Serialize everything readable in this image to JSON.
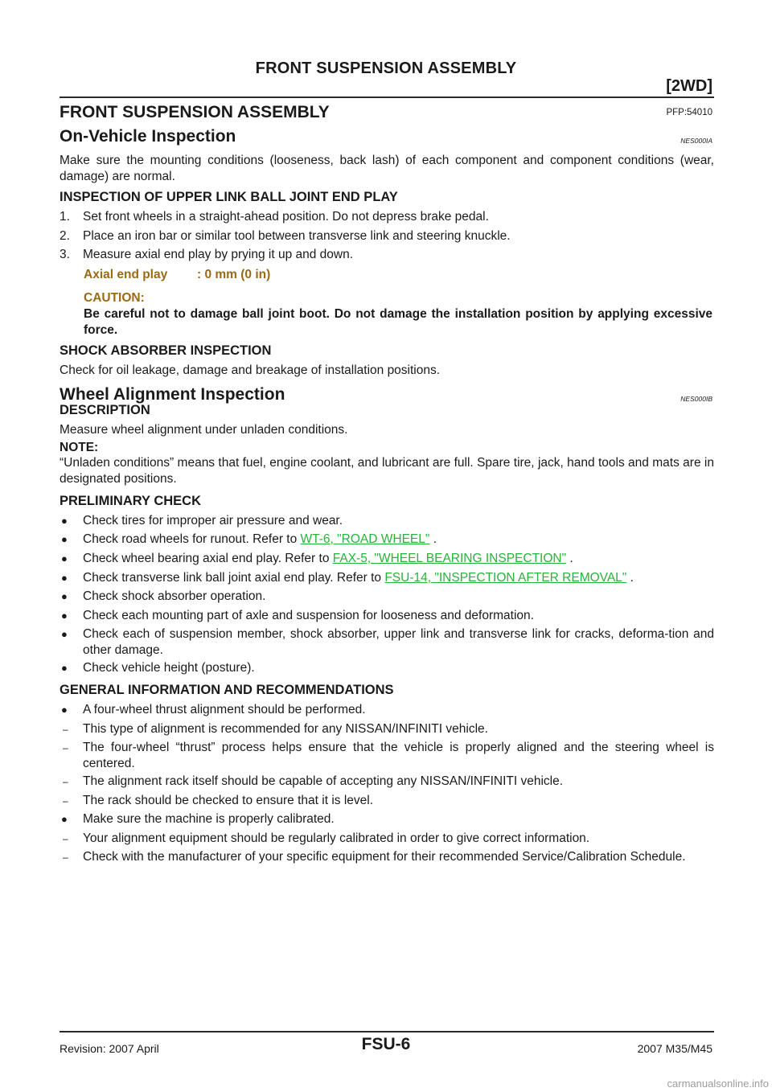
{
  "header": {
    "title": "FRONT SUSPENSION ASSEMBLY",
    "tag": "[2WD]"
  },
  "section": {
    "title": "FRONT SUSPENSION ASSEMBLY",
    "code": "PFP:54010"
  },
  "on_vehicle": {
    "title": "On-Vehicle Inspection",
    "code": "NES000IA",
    "intro": "Make sure the mounting conditions (looseness, back lash) of each component and component conditions (wear, damage) are normal.",
    "ball_joint": {
      "heading": "INSPECTION OF UPPER LINK BALL JOINT END PLAY",
      "steps": [
        {
          "num": "1.",
          "text": "Set front wheels in a straight-ahead position. Do not depress brake pedal."
        },
        {
          "num": "2.",
          "text": "Place an iron bar or similar tool between transverse link and steering knuckle."
        },
        {
          "num": "3.",
          "text": "Measure axial end play by prying it up and down."
        }
      ],
      "spec_label": "Axial end play",
      "spec_value": ": 0 mm (0 in)",
      "caution_heading": "CAUTION:",
      "caution_text": "Be careful not to damage ball joint boot. Do not damage the installation position by applying excessive force."
    },
    "shock": {
      "heading": "SHOCK ABSORBER INSPECTION",
      "text": "Check for oil leakage, damage and breakage of installation positions."
    }
  },
  "alignment": {
    "title": "Wheel Alignment Inspection",
    "code": "NES000IB",
    "description_heading": "DESCRIPTION",
    "description_text": "Measure wheel alignment under unladen conditions.",
    "note_heading": "NOTE:",
    "note_text": "“Unladen conditions” means that fuel, engine coolant, and lubricant are full. Spare tire, jack, hand tools and mats are in designated positions.",
    "preliminary": {
      "heading": "PRELIMINARY CHECK",
      "items": [
        {
          "text": "Check tires for improper air pressure and wear."
        },
        {
          "pre": "Check road wheels for runout. Refer to ",
          "link": "WT-6, \"ROAD WHEEL\"",
          "post": " ."
        },
        {
          "pre": "Check wheel bearing axial end play. Refer to ",
          "link": "FAX-5, \"WHEEL BEARING INSPECTION\"",
          "post": " ."
        },
        {
          "pre": "Check transverse link ball joint axial end play. Refer to ",
          "link": "FSU-14, \"INSPECTION AFTER REMOVAL\"",
          "post": " ."
        },
        {
          "text": "Check shock absorber operation."
        },
        {
          "text": "Check each mounting part of axle and suspension for looseness and deformation."
        },
        {
          "text": "Check each of suspension member, shock absorber, upper link and transverse link for cracks, deforma-tion and other damage."
        },
        {
          "text": "Check vehicle height (posture)."
        }
      ]
    },
    "general": {
      "heading": "GENERAL INFORMATION AND RECOMMENDATIONS",
      "items": [
        {
          "marker": "●",
          "text": "A four-wheel thrust alignment should be performed."
        },
        {
          "marker": "–",
          "text": "This type of alignment is recommended for any NISSAN/INFINITI vehicle."
        },
        {
          "marker": "–",
          "text": "The four-wheel “thrust” process helps ensure that the vehicle is properly aligned and the steering wheel is centered."
        },
        {
          "marker": "–",
          "text": "The alignment rack itself should be capable of accepting any NISSAN/INFINITI vehicle."
        },
        {
          "marker": "–",
          "text": "The rack should be checked to ensure that it is level."
        },
        {
          "marker": "●",
          "text": "Make sure the machine is properly calibrated."
        },
        {
          "marker": "–",
          "text": "Your alignment equipment should be regularly calibrated in order to give correct information."
        },
        {
          "marker": "–",
          "text": "Check with the manufacturer of your specific equipment for their recommended Service/Calibration Schedule."
        }
      ]
    }
  },
  "footer": {
    "revision": "Revision: 2007 April",
    "page": "FSU-6",
    "model": "2007 M35/M45"
  },
  "watermark": "carmanualsonline.info",
  "bullet_marker": "●"
}
